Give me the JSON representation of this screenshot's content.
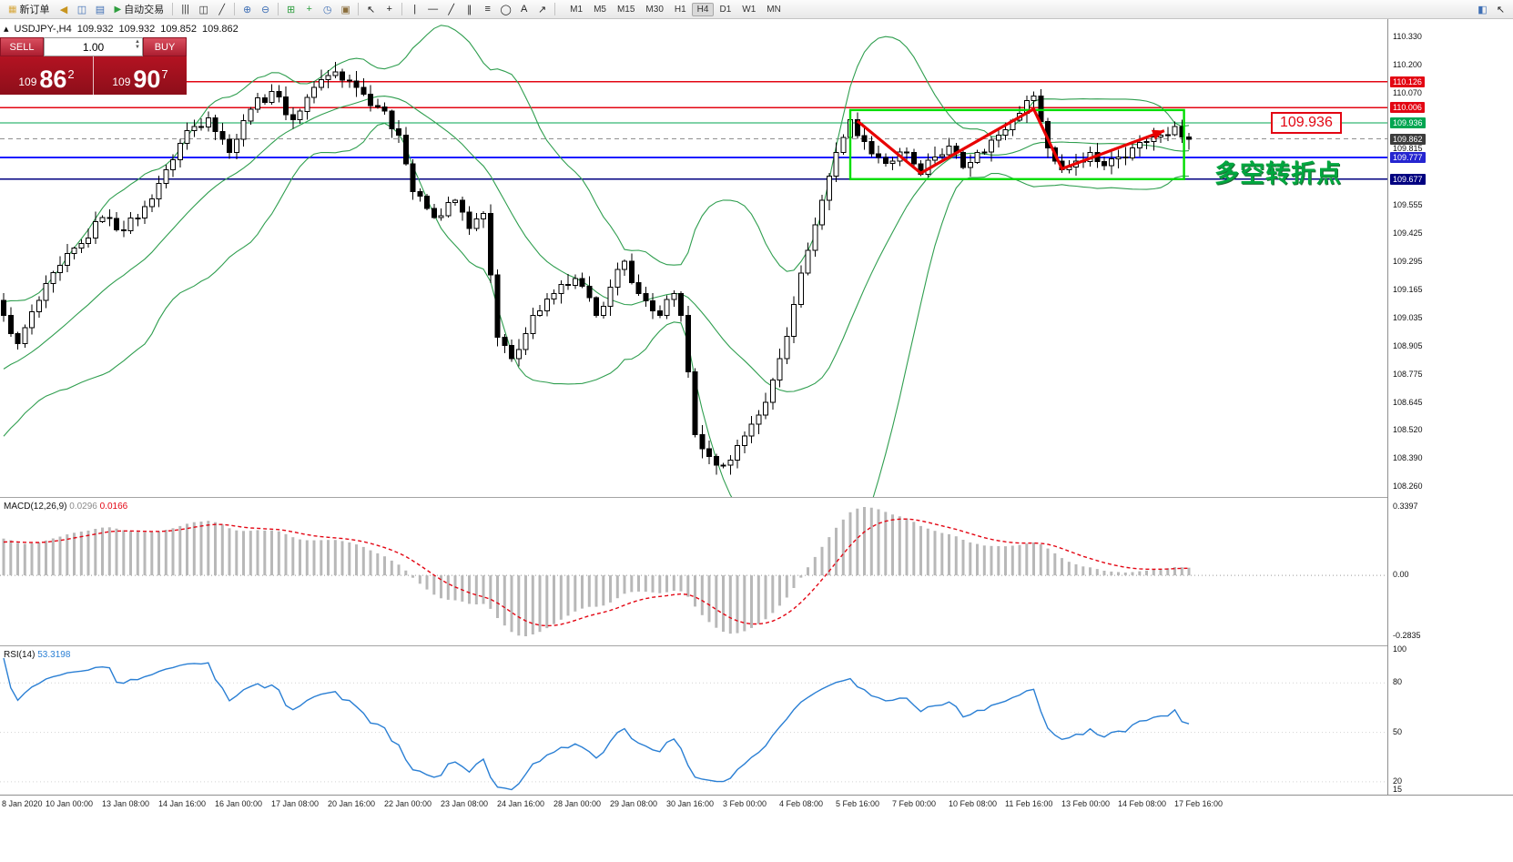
{
  "toolbar": {
    "items": [
      {
        "t": "btn",
        "name": "new-order-button",
        "label": "新订单",
        "glyph": "▦",
        "gc": "#d7a83e"
      },
      {
        "t": "ic",
        "name": "sound-icon",
        "glyph": "◀",
        "c": "#c8951f"
      },
      {
        "t": "ic",
        "name": "chart-window-icon",
        "glyph": "◫",
        "c": "#3f6fb5"
      },
      {
        "t": "ic",
        "name": "profiles-icon",
        "glyph": "▤",
        "c": "#3f6fb5"
      },
      {
        "t": "btn",
        "name": "auto-trading-button",
        "label": "自动交易",
        "glyph": "▶",
        "gc": "#2e9e3f"
      },
      {
        "t": "sep"
      },
      {
        "t": "ic",
        "name": "bar-chart-icon",
        "glyph": "|||",
        "c": "#333333"
      },
      {
        "t": "ic",
        "name": "candlestick-chart-icon",
        "glyph": "◫",
        "c": "#333333"
      },
      {
        "t": "ic",
        "name": "line-chart-icon",
        "glyph": "╱",
        "c": "#333333"
      },
      {
        "t": "sep"
      },
      {
        "t": "ic",
        "name": "zoom-in-icon",
        "glyph": "⊕",
        "c": "#3f6fb5"
      },
      {
        "t": "ic",
        "name": "zoom-out-icon",
        "glyph": "⊖",
        "c": "#3f6fb5"
      },
      {
        "t": "sep"
      },
      {
        "t": "ic",
        "name": "tile-windows-icon",
        "glyph": "⊞",
        "c": "#2e9e3f"
      },
      {
        "t": "ic",
        "name": "indicators-icon",
        "glyph": "+",
        "c": "#2e9e3f"
      },
      {
        "t": "ic",
        "name": "periods-icon",
        "glyph": "◷",
        "c": "#3f6fb5"
      },
      {
        "t": "ic",
        "name": "templates-icon",
        "glyph": "▣",
        "c": "#8a6d3b"
      },
      {
        "t": "sep"
      },
      {
        "t": "ic",
        "name": "cursor-icon",
        "glyph": "↖",
        "c": "#222222"
      },
      {
        "t": "ic",
        "name": "crosshair-icon",
        "glyph": "+",
        "c": "#222222"
      },
      {
        "t": "sep"
      },
      {
        "t": "ic",
        "name": "vertical-line-icon",
        "glyph": "|",
        "c": "#222222"
      },
      {
        "t": "ic",
        "name": "horizontal-line-icon",
        "glyph": "—",
        "c": "#222222"
      },
      {
        "t": "ic",
        "name": "trendline-icon",
        "glyph": "╱",
        "c": "#222222"
      },
      {
        "t": "ic",
        "name": "equidistant-channel-icon",
        "glyph": "∥",
        "c": "#222222"
      },
      {
        "t": "ic",
        "name": "fibonacci-icon",
        "glyph": "≡",
        "c": "#222222"
      },
      {
        "t": "ic",
        "name": "shapes-icon",
        "glyph": "◯",
        "c": "#222222"
      },
      {
        "t": "ic",
        "name": "text-icon",
        "glyph": "A",
        "c": "#222222"
      },
      {
        "t": "ic",
        "name": "arrow-objects-icon",
        "glyph": "↗",
        "c": "#222222"
      },
      {
        "t": "sep"
      }
    ],
    "timeframes": [
      "M1",
      "M5",
      "M15",
      "M30",
      "H1",
      "H4",
      "D1",
      "W1",
      "MN"
    ],
    "active_timeframe": "H4",
    "icons_right": [
      {
        "name": "chart-layout-icon",
        "glyph": "◧",
        "c": "#3f6fb5"
      },
      {
        "name": "docking-pointer-icon",
        "glyph": "↖",
        "c": "#222222"
      }
    ]
  },
  "symbol_header": {
    "collapse_icon": "▴",
    "symbol": "USDJPY-,H4",
    "open": "109.932",
    "high": "109.932",
    "low": "109.852",
    "close": "109.862"
  },
  "trade_panel": {
    "sell_label": "SELL",
    "buy_label": "BUY",
    "lot_value": "1.00",
    "sell_price_small": "109",
    "sell_price_big": "86",
    "sell_price_sup": "2",
    "buy_price_small": "109",
    "buy_price_big": "90",
    "buy_price_sup": "7"
  },
  "price_scale": {
    "regular": [
      "110.330",
      "110.200",
      "110.070",
      "109.815",
      "109.555",
      "109.425",
      "109.295",
      "109.165",
      "109.035",
      "108.905",
      "108.775",
      "108.645",
      "108.520",
      "108.390",
      "108.260"
    ],
    "lines": [
      {
        "name": "resistance-line-upper",
        "price": 110.126,
        "color": "#e30613",
        "label_bg": "#e30613",
        "style": "solid",
        "width": 1.4
      },
      {
        "name": "resistance-line-lower",
        "price": 110.006,
        "color": "#e30613",
        "label_bg": "#e30613",
        "style": "solid",
        "width": 1.4
      },
      {
        "name": "green-level-line",
        "price": 109.936,
        "color": "#00a651",
        "label_bg": "#00a651",
        "style": "solid",
        "width": 1.4
      },
      {
        "name": "bid-price-line",
        "price": 109.862,
        "color": "#909090",
        "label_bg": "#3c3c3c",
        "style": "dashed",
        "width": 1
      },
      {
        "name": "support-line-upper",
        "price": 109.777,
        "color": "#1a1aff",
        "label_bg": "#2525d0",
        "style": "solid",
        "width": 1.6
      },
      {
        "name": "support-line-lower",
        "price": 109.677,
        "color": "#000080",
        "label_bg": "#000080",
        "style": "solid",
        "width": 1.6
      }
    ]
  },
  "indicators": {
    "macd": {
      "name": "MACD(12,26,9)",
      "main_value": "0.0296",
      "signal_value": "0.0166",
      "scale_top": "0.3397",
      "scale_zero": "0.00",
      "scale_bottom": "-0.2835"
    },
    "rsi": {
      "name": "RSI(14)",
      "value": "53.3198",
      "scale": [
        "100",
        "80",
        "50",
        "20",
        "15"
      ],
      "levels": [
        80,
        50,
        20
      ]
    }
  },
  "chart_data": [
    {
      "type": "candlestick",
      "symbol": "USDJPY-",
      "timeframe": "H4",
      "bars": 169,
      "y_range": [
        108.26,
        110.33
      ],
      "last_ohlc": {
        "open": 109.932,
        "high": 109.932,
        "low": 109.852,
        "close": 109.862
      },
      "x_labels": [
        "8 Jan 2020",
        "10 Jan 00:00",
        "13 Jan 08:00",
        "14 Jan 16:00",
        "16 Jan 00:00",
        "17 Jan 08:00",
        "20 Jan 16:00",
        "22 Jan 00:00",
        "23 Jan 08:00",
        "24 Jan 16:00",
        "28 Jan 00:00",
        "29 Jan 08:00",
        "30 Jan 16:00",
        "3 Feb 00:00",
        "4 Feb 08:00",
        "5 Feb 16:00",
        "7 Feb 00:00",
        "10 Feb 08:00",
        "11 Feb 16:00",
        "13 Feb 00:00",
        "14 Feb 08:00",
        "17 Feb 16:00"
      ],
      "price_pivots": [
        [
          0,
          109.05
        ],
        [
          2,
          108.92
        ],
        [
          5,
          109.12
        ],
        [
          8,
          109.28
        ],
        [
          11,
          109.38
        ],
        [
          14,
          109.5
        ],
        [
          17,
          109.44
        ],
        [
          20,
          109.55
        ],
        [
          23,
          109.72
        ],
        [
          26,
          109.9
        ],
        [
          29,
          109.96
        ],
        [
          32,
          109.8
        ],
        [
          35,
          110.0
        ],
        [
          38,
          110.08
        ],
        [
          41,
          109.95
        ],
        [
          44,
          110.1
        ],
        [
          47,
          110.17
        ],
        [
          50,
          110.1
        ],
        [
          53,
          110.01
        ],
        [
          56,
          109.88
        ],
        [
          58,
          109.62
        ],
        [
          61,
          109.5
        ],
        [
          64,
          109.58
        ],
        [
          66,
          109.45
        ],
        [
          68,
          109.52
        ],
        [
          70,
          108.95
        ],
        [
          72,
          108.85
        ],
        [
          75,
          109.05
        ],
        [
          78,
          109.15
        ],
        [
          81,
          109.22
        ],
        [
          84,
          109.05
        ],
        [
          86,
          109.18
        ],
        [
          88,
          109.3
        ],
        [
          90,
          109.15
        ],
        [
          93,
          109.05
        ],
        [
          95,
          109.15
        ],
        [
          96,
          109.05
        ],
        [
          98,
          108.5
        ],
        [
          100,
          108.4
        ],
        [
          102,
          108.36
        ],
        [
          104,
          108.45
        ],
        [
          106,
          108.55
        ],
        [
          108,
          108.65
        ],
        [
          110,
          108.85
        ],
        [
          112,
          109.1
        ],
        [
          114,
          109.35
        ],
        [
          116,
          109.58
        ],
        [
          118,
          109.8
        ],
        [
          120,
          109.95
        ],
        [
          122,
          109.85
        ],
        [
          125,
          109.75
        ],
        [
          128,
          109.8
        ],
        [
          130,
          109.7
        ],
        [
          132,
          109.78
        ],
        [
          134,
          109.83
        ],
        [
          136,
          109.73
        ],
        [
          138,
          109.8
        ],
        [
          141,
          109.88
        ],
        [
          144,
          109.98
        ],
        [
          146,
          110.06
        ],
        [
          148,
          109.82
        ],
        [
          150,
          109.72
        ],
        [
          152,
          109.76
        ],
        [
          154,
          109.8
        ],
        [
          156,
          109.74
        ],
        [
          158,
          109.78
        ],
        [
          160,
          109.82
        ],
        [
          162,
          109.85
        ],
        [
          164,
          109.88
        ],
        [
          166,
          109.92
        ],
        [
          168,
          109.86
        ]
      ],
      "overlays": [
        {
          "name": "Bollinger Bands",
          "period": 20,
          "deviation": 2,
          "color": "#2f9e4f"
        }
      ],
      "hlines": [
        110.126,
        110.006,
        109.936,
        109.862,
        109.777,
        109.677
      ],
      "annotations": {
        "box": {
          "from_bar": 120,
          "to_bar": 167.3,
          "top": 109.995,
          "bottom": 109.677,
          "color": "#00dd00"
        },
        "zigzag": [
          [
            121,
            109.945
          ],
          [
            130,
            109.705
          ],
          [
            146,
            110.0
          ],
          [
            150,
            109.725
          ],
          [
            164.5,
            109.9
          ]
        ],
        "zigzag_color": "#e80000",
        "price_tag": "109.936",
        "note": "多空转折点"
      }
    },
    {
      "type": "bar",
      "name": "MACD(12,26,9)",
      "derivation": "histogram = EMA12-EMA26 of closes, dashed red line = EMA9 signal",
      "last_main": 0.0296,
      "last_signal": 0.0166,
      "y_max": 0.3397,
      "y_min": -0.2835
    },
    {
      "type": "line",
      "name": "RSI(14)",
      "last": 53.3198,
      "y_range": [
        15,
        100
      ],
      "levels": [
        80,
        50,
        20
      ]
    }
  ]
}
